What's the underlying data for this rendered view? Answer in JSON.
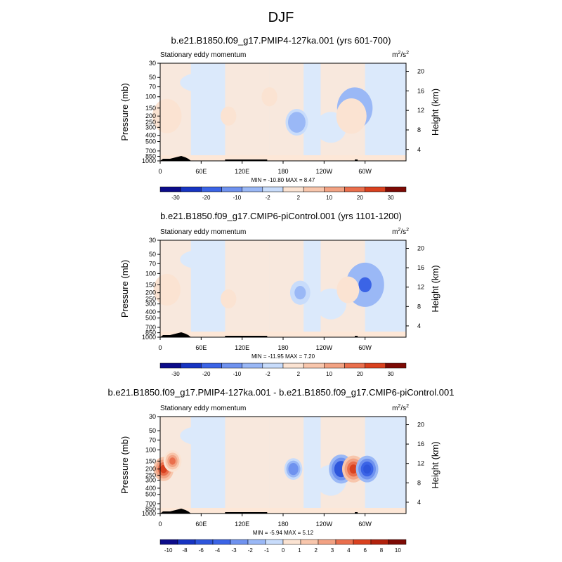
{
  "figure": {
    "title": "DJF"
  },
  "colors": {
    "neg": [
      "#0c0c8a",
      "#1734c2",
      "#3b64e6",
      "#6f92ef",
      "#9ab8f6",
      "#c8dcfb"
    ],
    "pos": [
      "#fbe3d2",
      "#f8c6ac",
      "#f2a283",
      "#ea6f4d",
      "#d9411f",
      "#b2220d",
      "#7d0a05"
    ]
  },
  "chart_data": [
    {
      "type": "contour",
      "title": "b.e21.B1850.f09_g17.PMIP4-127ka.001 (yrs 601-700)",
      "variable": "Stationary eddy momentum",
      "units": "m²/s²",
      "units_base": "m",
      "units_exp": "2",
      "units_mid": "/s",
      "ylabel": "Pressure (mb)",
      "y2label": "Height (km)",
      "y_ticks": [
        "30",
        "50",
        "70",
        "100",
        "150",
        "200",
        "250",
        "300",
        "400",
        "500",
        "700",
        "850",
        "1000"
      ],
      "y2_ticks": [
        "20",
        "16",
        "12",
        "8",
        "4"
      ],
      "x_ticks": [
        "0",
        "60E",
        "120E",
        "180",
        "120W",
        "60W"
      ],
      "stats": "MIN = -10.80  MAX =   8.47",
      "colorbar_labels": [
        "-30",
        "-20",
        "-10",
        "-2",
        "2",
        "10",
        "20",
        "30"
      ],
      "features": [
        {
          "lon": 10,
          "p": 200,
          "value": 8
        },
        {
          "lon": 285,
          "p": 150,
          "value": -10.8
        },
        {
          "lon": 280,
          "p": 200,
          "value": 8.47
        },
        {
          "lon": 200,
          "p": 250,
          "value": -5
        },
        {
          "lon": 100,
          "p": 200,
          "value": 2
        },
        {
          "lon": 160,
          "p": 100,
          "value": 2
        }
      ]
    },
    {
      "type": "contour",
      "title": "b.e21.B1850.f09_g17.CMIP6-piControl.001 (yrs 1101-1200)",
      "variable": "Stationary eddy momentum",
      "units": "m²/s²",
      "units_base": "m",
      "units_exp": "2",
      "units_mid": "/s",
      "ylabel": "Pressure (mb)",
      "y2label": "Height (km)",
      "y_ticks": [
        "30",
        "50",
        "70",
        "100",
        "150",
        "200",
        "250",
        "300",
        "400",
        "500",
        "700",
        "850",
        "1000"
      ],
      "y2_ticks": [
        "20",
        "16",
        "12",
        "8",
        "4"
      ],
      "x_ticks": [
        "0",
        "60E",
        "120E",
        "180",
        "120W",
        "60W"
      ],
      "stats": "MIN = -11.95  MAX =   7.20",
      "colorbar_labels": [
        "-30",
        "-20",
        "-10",
        "-2",
        "2",
        "10",
        "20",
        "30"
      ],
      "features": [
        {
          "lon": 10,
          "p": 180,
          "value": 7
        },
        {
          "lon": 300,
          "p": 150,
          "value": -11.95
        },
        {
          "lon": 275,
          "p": 180,
          "value": 5
        },
        {
          "lon": 205,
          "p": 200,
          "value": -4
        },
        {
          "lon": 100,
          "p": 250,
          "value": 2
        }
      ]
    },
    {
      "type": "contour",
      "title": "b.e21.B1850.f09_g17.PMIP4-127ka.001 - b.e21.B1850.f09_g17.CMIP6-piControl.001",
      "variable": "Stationary eddy momentum",
      "units": "m²/s²",
      "units_base": "m",
      "units_exp": "2",
      "units_mid": "/s",
      "ylabel": "Pressure (mb)",
      "y2label": "Height (km)",
      "y_ticks": [
        "30",
        "50",
        "70",
        "100",
        "150",
        "200",
        "250",
        "300",
        "400",
        "500",
        "700",
        "850",
        "1000"
      ],
      "y2_ticks": [
        "20",
        "16",
        "12",
        "8",
        "4"
      ],
      "x_ticks": [
        "0",
        "60E",
        "120E",
        "180",
        "120W",
        "60W"
      ],
      "stats": "MIN = -5.94  MAX =  5.12",
      "colorbar_labels": [
        "-10",
        "-8",
        "-6",
        "-4",
        "-3",
        "-2",
        "-1",
        "0",
        "1",
        "2",
        "3",
        "4",
        "6",
        "8",
        "10"
      ],
      "features": [
        {
          "lon": 5,
          "p": 200,
          "value": 4
        },
        {
          "lon": 18,
          "p": 150,
          "value": 3
        },
        {
          "lon": 265,
          "p": 200,
          "value": -5.94
        },
        {
          "lon": 283,
          "p": 200,
          "value": 5.12
        },
        {
          "lon": 303,
          "p": 200,
          "value": -5
        },
        {
          "lon": 195,
          "p": 200,
          "value": -3
        }
      ]
    }
  ]
}
